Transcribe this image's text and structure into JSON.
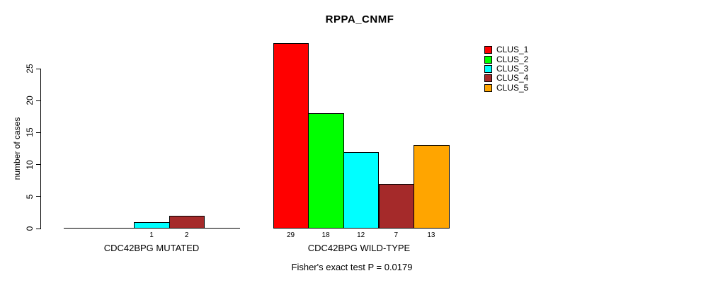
{
  "chart_data": {
    "type": "bar",
    "title": "RPPA_CNMF",
    "ylabel": "number of cases",
    "xlabel": "",
    "ylim": [
      0,
      29
    ],
    "yticks": [
      0,
      5,
      10,
      15,
      20,
      25
    ],
    "grid": false,
    "legend_position": "top-right",
    "series": [
      "CLUS_1",
      "CLUS_2",
      "CLUS_3",
      "CLUS_4",
      "CLUS_5"
    ],
    "colors": [
      "#FF0000",
      "#00FF00",
      "#00FFFF",
      "#A52A2A",
      "#FFA500"
    ],
    "bar_border_color": "#000000",
    "groups": [
      {
        "label": "CDC42BPG MUTATED",
        "values": [
          0,
          0,
          1,
          2,
          0
        ]
      },
      {
        "label": "CDC42BPG WILD-TYPE",
        "values": [
          29,
          18,
          12,
          7,
          13
        ]
      }
    ],
    "bar_value_labels": [
      [
        "",
        "",
        "1",
        "2",
        ""
      ],
      [
        "29",
        "18",
        "12",
        "7",
        "13"
      ]
    ],
    "subtitle": "Fisher's exact test P = 0.0179"
  }
}
